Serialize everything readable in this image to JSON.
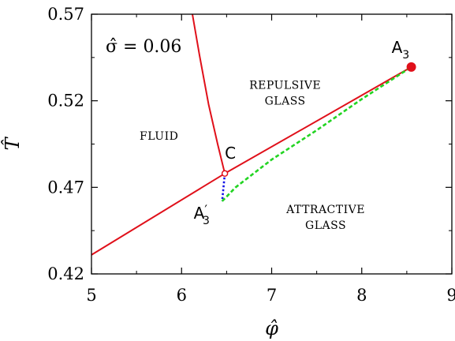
{
  "chart_data": {
    "type": "line",
    "xlabel": "φ̂",
    "ylabel": "T̂",
    "xlim": [
      5,
      9
    ],
    "ylim": [
      0.42,
      0.57
    ],
    "x_ticks": [
      5,
      6,
      7,
      8,
      9
    ],
    "x_tick_labels": [
      "5",
      "6",
      "7",
      "8",
      "9"
    ],
    "y_ticks": [
      0.42,
      0.47,
      0.52,
      0.57
    ],
    "y_tick_labels": [
      "0.42",
      "0.47",
      "0.52",
      "0.57"
    ],
    "grid": false,
    "annotation": "σ̂ = 0.06",
    "region_labels": [
      {
        "lines": [
          "REPULSIVE",
          "GLASS"
        ],
        "x": 7.15,
        "y": 0.527
      },
      {
        "lines": [
          "FLUID"
        ],
        "x": 5.75,
        "y": 0.4975
      },
      {
        "lines": [
          "ATTRACTIVE",
          "GLASS"
        ],
        "x": 7.6,
        "y": 0.455
      }
    ],
    "series": [
      {
        "style": "solid",
        "color": "#e0101a",
        "points": [
          [
            5.0,
            0.431
          ],
          [
            6.48,
            0.478
          ],
          [
            8.55,
            0.5395
          ]
        ]
      },
      {
        "style": "solid",
        "color": "#e0101a",
        "points": [
          [
            6.12,
            0.57
          ],
          [
            6.2,
            0.546
          ],
          [
            6.3,
            0.518
          ],
          [
            6.4,
            0.495
          ],
          [
            6.48,
            0.478
          ]
        ]
      },
      {
        "style": "dotted",
        "color": "#1414e6",
        "points": [
          [
            6.48,
            0.478
          ],
          [
            6.45,
            0.462
          ]
        ]
      },
      {
        "style": "dashed",
        "color": "#22d422",
        "points": [
          [
            6.45,
            0.462
          ],
          [
            6.6,
            0.47
          ],
          [
            7.0,
            0.486
          ],
          [
            7.5,
            0.503
          ],
          [
            8.0,
            0.521
          ],
          [
            8.55,
            0.5395
          ]
        ]
      }
    ],
    "markers": [
      {
        "name": "A3-point",
        "label_base": "A",
        "label_sub": "3",
        "label_prime": false,
        "x": 8.55,
        "y": 0.5395,
        "style": "filled",
        "color": "#e0101a"
      },
      {
        "name": "C-point",
        "label_base": "C",
        "label_sub": "",
        "label_prime": false,
        "x": 6.48,
        "y": 0.478,
        "style": "open",
        "color": "#e0101a"
      },
      {
        "name": "A3-prime-point",
        "label_base": "A",
        "label_sub": "3",
        "label_prime": true,
        "x": 6.45,
        "y": 0.462,
        "style": "none",
        "color": "#000000"
      }
    ]
  }
}
